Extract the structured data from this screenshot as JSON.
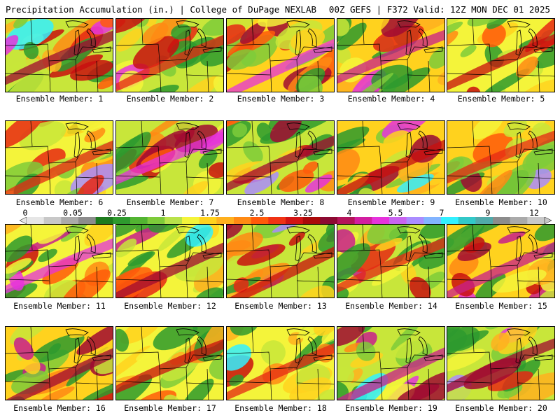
{
  "header": {
    "title_left": "Precipitation Accumulation (in.) | College of DuPage NEXLAB",
    "title_right": "00Z GEFS | F372 Valid: 12Z MON DEC 01 2025"
  },
  "members": [
    {
      "label": "Ensemble Member: 1"
    },
    {
      "label": "Ensemble Member: 2"
    },
    {
      "label": "Ensemble Member: 3"
    },
    {
      "label": "Ensemble Member: 4"
    },
    {
      "label": "Ensemble Member: 5"
    },
    {
      "label": "Ensemble Member: 6"
    },
    {
      "label": "Ensemble Member: 7"
    },
    {
      "label": "Ensemble Member: 8"
    },
    {
      "label": "Ensemble Member: 9"
    },
    {
      "label": "Ensemble Member: 10"
    },
    {
      "label": "Ensemble Member: 11"
    },
    {
      "label": "Ensemble Member: 12"
    },
    {
      "label": "Ensemble Member: 13"
    },
    {
      "label": "Ensemble Member: 14"
    },
    {
      "label": "Ensemble Member: 15"
    },
    {
      "label": "Ensemble Member: 16"
    },
    {
      "label": "Ensemble Member: 17"
    },
    {
      "label": "Ensemble Member: 18"
    },
    {
      "label": "Ensemble Member: 19"
    },
    {
      "label": "Ensemble Member: 20"
    }
  ],
  "colorbar": {
    "labels": [
      "0",
      "0.05",
      "0.25",
      "1",
      "1.75",
      "2.5",
      "3.25",
      "4",
      "5.5",
      "7",
      "9",
      "12"
    ],
    "colors": [
      "#e6e6e6",
      "#c8c8c8",
      "#aaaaaa",
      "#8c8c8c",
      "#1e7a1e",
      "#2e9a2e",
      "#52b432",
      "#7ecb3a",
      "#b9e24a",
      "#f4f43a",
      "#ffd21e",
      "#ffb01e",
      "#ff8a14",
      "#ff5a0a",
      "#f03214",
      "#d21414",
      "#aa0a0a",
      "#8c0a32",
      "#b4145a",
      "#d21ea0",
      "#e632dc",
      "#c864f0",
      "#aa8cff",
      "#82b4ff",
      "#32f0ff",
      "#32c8c8",
      "#50aaaa",
      "#8c8c8c",
      "#aaaaaa",
      "#c8c8c8"
    ]
  }
}
